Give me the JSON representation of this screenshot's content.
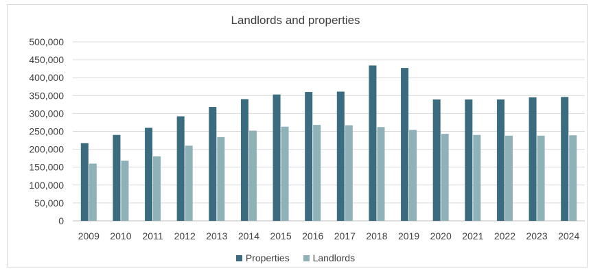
{
  "chart_data": {
    "type": "bar",
    "title": "Landlords and properties",
    "xlabel": "",
    "ylabel": "",
    "categories": [
      "2009",
      "2010",
      "2011",
      "2012",
      "2013",
      "2014",
      "2015",
      "2016",
      "2017",
      "2018",
      "2019",
      "2020",
      "2021",
      "2022",
      "2023",
      "2024"
    ],
    "series": [
      {
        "name": "Properties",
        "color": "#3a6b7e",
        "values": [
          217000,
          240000,
          260000,
          292000,
          318000,
          340000,
          353000,
          360000,
          361000,
          434000,
          427000,
          339000,
          339000,
          339000,
          345000,
          346000
        ]
      },
      {
        "name": "Landlords",
        "color": "#8fb1b8",
        "values": [
          160000,
          168000,
          180000,
          210000,
          234000,
          252000,
          263000,
          268000,
          267000,
          262000,
          254000,
          243000,
          240000,
          238000,
          238000,
          239000
        ]
      }
    ],
    "ylim": [
      0,
      500000
    ],
    "yticks": [
      "0",
      "50,000",
      "100,000",
      "150,000",
      "200,000",
      "250,000",
      "300,000",
      "350,000",
      "400,000",
      "450,000",
      "500,000"
    ],
    "grid": true,
    "legend": "bottom"
  }
}
